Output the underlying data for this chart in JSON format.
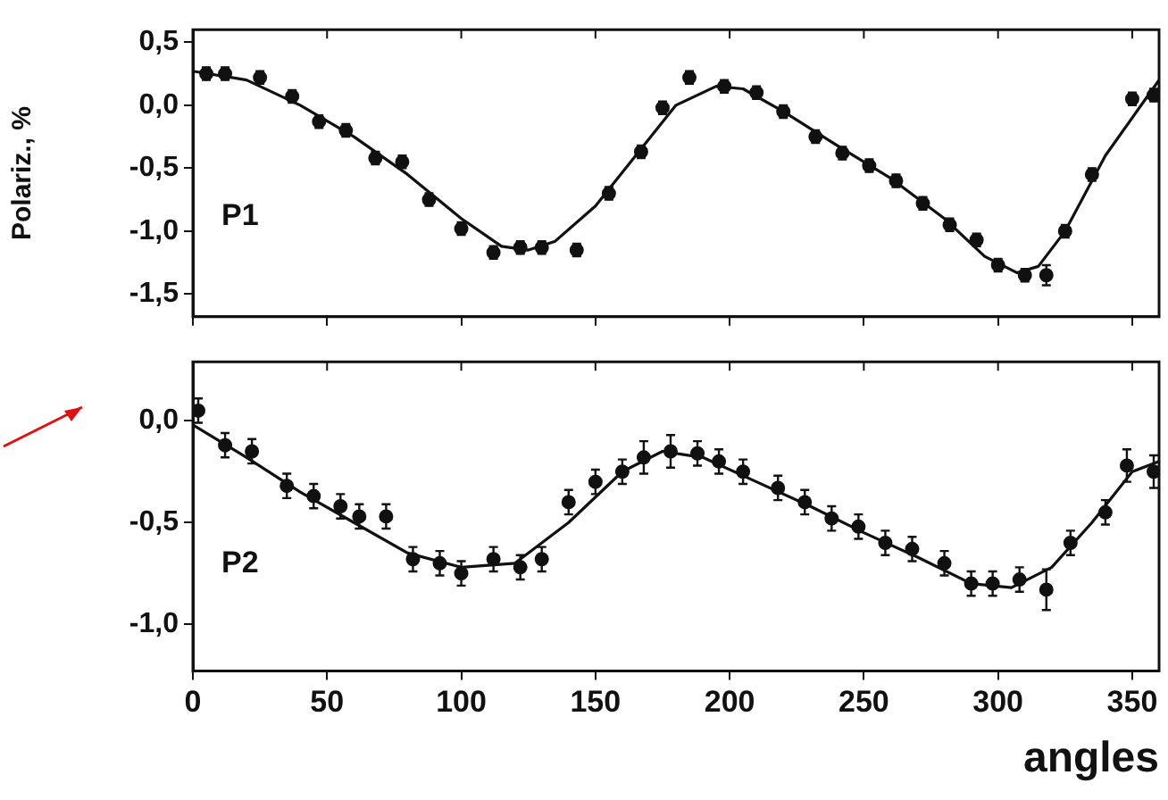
{
  "chart_data": [
    {
      "type": "scatter",
      "ylabel": "Polariz., %",
      "annotations": [
        "P1"
      ],
      "grid": false,
      "legend": false,
      "tick_labels": "y",
      "xlim": [
        0,
        360
      ],
      "xticks": [
        {
          "value": 0,
          "label": null
        },
        {
          "value": 50,
          "label": null
        },
        {
          "value": 100,
          "label": null
        },
        {
          "value": 150,
          "label": null
        },
        {
          "value": 200,
          "label": null
        },
        {
          "value": 250,
          "label": null
        },
        {
          "value": 300,
          "label": null
        },
        {
          "value": 350,
          "label": null
        }
      ],
      "ylim": [
        -1.68,
        0.6
      ],
      "yticks": [
        {
          "value": -1.5,
          "label": "-1,5"
        },
        {
          "value": -1,
          "label": "-1,0"
        },
        {
          "value": -0.5,
          "label": "-0,5"
        },
        {
          "value": 0,
          "label": "0,0"
        },
        {
          "value": 0.5,
          "label": "0,5"
        }
      ],
      "series": [
        {
          "marker": "circle",
          "color": "#111111",
          "x": [
            5,
            12,
            25,
            37,
            47,
            57,
            68,
            78,
            88,
            100,
            112,
            122,
            130,
            143,
            155,
            167,
            175,
            185,
            198,
            210,
            220,
            232,
            242,
            252,
            262,
            272,
            282,
            292,
            300,
            310,
            318,
            325,
            335,
            350,
            358
          ],
          "values": [
            0.25,
            0.25,
            0.22,
            0.07,
            -0.13,
            -0.2,
            -0.42,
            -0.45,
            -0.75,
            -0.98,
            -1.17,
            -1.13,
            -1.13,
            -1.15,
            -0.7,
            -0.37,
            -0.02,
            0.22,
            0.15,
            0.1,
            -0.05,
            -0.25,
            -0.38,
            -0.48,
            -0.6,
            -0.78,
            -0.95,
            -1.07,
            -1.27,
            -1.35,
            -1.35,
            -1.0,
            -0.55,
            0.05,
            0.08
          ],
          "errors": [
            0.05,
            0.05,
            0.05,
            0.05,
            0.05,
            0.05,
            0.05,
            0.05,
            0.05,
            0.05,
            0.05,
            0.05,
            0.05,
            0.05,
            0.05,
            0.05,
            0.05,
            0.05,
            0.05,
            0.05,
            0.05,
            0.05,
            0.05,
            0.05,
            0.05,
            0.05,
            0.05,
            0.05,
            0.05,
            0.05,
            0.08,
            0.05,
            0.05,
            0.05,
            0.05
          ]
        },
        {
          "type": "line",
          "marker": "none",
          "color": "#111111",
          "x": [
            0,
            20,
            40,
            60,
            80,
            100,
            115,
            125,
            135,
            150,
            165,
            180,
            195,
            205,
            220,
            240,
            260,
            280,
            295,
            307,
            315,
            325,
            340,
            355,
            360
          ],
          "values": [
            0.27,
            0.2,
            0.0,
            -0.25,
            -0.55,
            -0.9,
            -1.12,
            -1.15,
            -1.08,
            -0.8,
            -0.4,
            0.0,
            0.15,
            0.13,
            -0.05,
            -0.32,
            -0.58,
            -0.9,
            -1.2,
            -1.33,
            -1.28,
            -1.0,
            -0.4,
            0.05,
            0.2
          ]
        }
      ]
    },
    {
      "type": "scatter",
      "xlabel": "angles",
      "annotations": [
        "P2"
      ],
      "grid": false,
      "legend": false,
      "xlim": [
        0,
        360
      ],
      "xticks": [
        0,
        50,
        100,
        150,
        200,
        250,
        300,
        350
      ],
      "ylim": [
        -1.23,
        0.29
      ],
      "yticks": [
        {
          "value": -1,
          "label": "-1,0"
        },
        {
          "value": -0.5,
          "label": "-0,5"
        },
        {
          "value": 0,
          "label": "0,0"
        }
      ],
      "series": [
        {
          "marker": "circle",
          "color": "#111111",
          "x": [
            2,
            12,
            22,
            35,
            45,
            55,
            62,
            72,
            82,
            92,
            100,
            112,
            122,
            130,
            140,
            150,
            160,
            168,
            178,
            188,
            196,
            205,
            218,
            228,
            238,
            248,
            258,
            268,
            280,
            290,
            298,
            308,
            318,
            327,
            340,
            348,
            358
          ],
          "values": [
            0.05,
            -0.12,
            -0.15,
            -0.32,
            -0.37,
            -0.42,
            -0.47,
            -0.47,
            -0.68,
            -0.7,
            -0.75,
            -0.68,
            -0.72,
            -0.68,
            -0.4,
            -0.3,
            -0.25,
            -0.18,
            -0.15,
            -0.16,
            -0.2,
            -0.25,
            -0.33,
            -0.4,
            -0.48,
            -0.52,
            -0.6,
            -0.63,
            -0.7,
            -0.8,
            -0.8,
            -0.78,
            -0.83,
            -0.6,
            -0.45,
            -0.22,
            -0.25
          ],
          "errors": [
            0.06,
            0.06,
            0.06,
            0.06,
            0.06,
            0.06,
            0.06,
            0.06,
            0.06,
            0.06,
            0.06,
            0.06,
            0.06,
            0.06,
            0.06,
            0.06,
            0.06,
            0.08,
            0.08,
            0.06,
            0.06,
            0.06,
            0.06,
            0.06,
            0.06,
            0.06,
            0.06,
            0.06,
            0.06,
            0.06,
            0.06,
            0.06,
            0.1,
            0.06,
            0.06,
            0.08,
            0.08
          ]
        },
        {
          "type": "line",
          "marker": "none",
          "color": "#111111",
          "x": [
            0,
            20,
            40,
            60,
            80,
            100,
            120,
            140,
            160,
            175,
            190,
            210,
            230,
            250,
            270,
            290,
            305,
            320,
            335,
            350,
            360
          ],
          "values": [
            -0.02,
            -0.18,
            -0.35,
            -0.5,
            -0.65,
            -0.72,
            -0.7,
            -0.5,
            -0.25,
            -0.15,
            -0.18,
            -0.3,
            -0.42,
            -0.55,
            -0.67,
            -0.8,
            -0.82,
            -0.72,
            -0.5,
            -0.25,
            -0.2
          ]
        }
      ]
    }
  ]
}
